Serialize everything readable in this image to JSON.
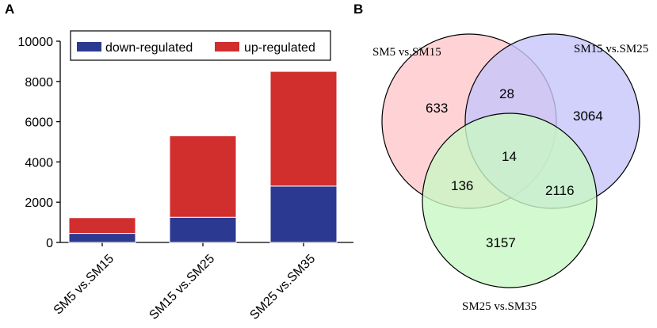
{
  "panels": {
    "a": "A",
    "b": "B"
  },
  "chart_data": [
    {
      "type": "bar",
      "stacked": true,
      "categories": [
        "SM5 vs.SM15",
        "SM15 vs.SM25",
        "SM25 vs.SM35"
      ],
      "series": [
        {
          "name": "down-regulated",
          "color": "#2b3990",
          "values": [
            450,
            1250,
            2800
          ]
        },
        {
          "name": "up-regulated",
          "color": "#d12e2e",
          "values": [
            780,
            4050,
            5700
          ]
        }
      ],
      "ylim": [
        0,
        10000
      ],
      "yticks": [
        0,
        2000,
        4000,
        6000,
        8000,
        10000
      ],
      "title": "",
      "xlabel": "",
      "ylabel": "",
      "legend": "top"
    },
    {
      "type": "venn",
      "sets": [
        {
          "name": "SM5 vs.SM15",
          "color": "#ffc8cc"
        },
        {
          "name": "SM15 vs.SM25",
          "color": "#c6c6fb"
        },
        {
          "name": "SM25 vs.SM35",
          "color": "#c8f8c4"
        }
      ],
      "regions": [
        {
          "sets": [
            "SM5 vs.SM15"
          ],
          "count": "633"
        },
        {
          "sets": [
            "SM15 vs.SM25"
          ],
          "count": "3064"
        },
        {
          "sets": [
            "SM25 vs.SM35"
          ],
          "count": "3157"
        },
        {
          "sets": [
            "SM5 vs.SM15",
            "SM15 vs.SM25"
          ],
          "count": "28"
        },
        {
          "sets": [
            "SM5 vs.SM15",
            "SM25 vs.SM35"
          ],
          "count": "136"
        },
        {
          "sets": [
            "SM15 vs.SM25",
            "SM25 vs.SM35"
          ],
          "count": "2116"
        },
        {
          "sets": [
            "SM5 vs.SM15",
            "SM15 vs.SM25",
            "SM25 vs.SM35"
          ],
          "count": "14"
        }
      ]
    }
  ]
}
